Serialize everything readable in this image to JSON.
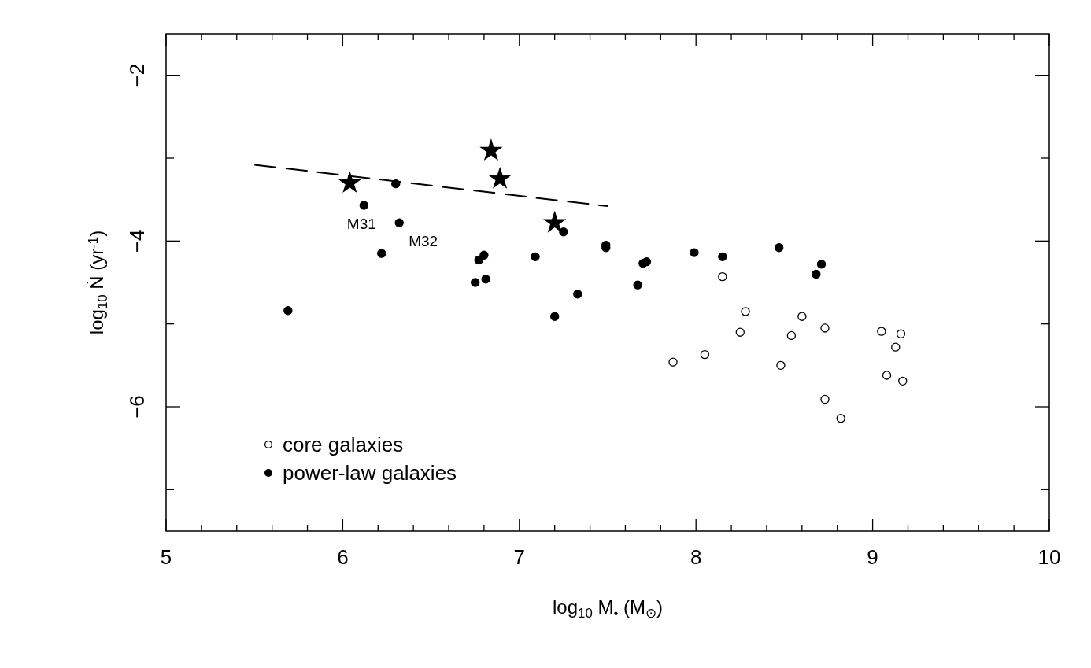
{
  "chart_data": {
    "type": "scatter",
    "xlabel": "log$_{10}$ M$_{•}$ (M$_{⊙}$)",
    "ylabel": "log$_{10}$ Ṅ (yr$^{-1}$)",
    "xlim": [
      5,
      10
    ],
    "ylim": [
      -7.5,
      -1.5
    ],
    "xticks": [
      5,
      {
        "value": 5.2,
        "label": null
      },
      {
        "value": 5.4,
        "label": null
      },
      {
        "value": 5.6,
        "label": null
      },
      {
        "value": 5.8,
        "label": null
      },
      6,
      {
        "value": 6.2,
        "label": null
      },
      {
        "value": 6.4,
        "label": null
      },
      {
        "value": 6.6,
        "label": null
      },
      {
        "value": 6.8,
        "label": null
      },
      7,
      {
        "value": 7.2,
        "label": null
      },
      {
        "value": 7.4,
        "label": null
      },
      {
        "value": 7.6,
        "label": null
      },
      {
        "value": 7.8,
        "label": null
      },
      8,
      {
        "value": 8.2,
        "label": null
      },
      {
        "value": 8.4,
        "label": null
      },
      {
        "value": 8.6,
        "label": null
      },
      {
        "value": 8.8,
        "label": null
      },
      9,
      {
        "value": 9.2,
        "label": null
      },
      {
        "value": 9.4,
        "label": null
      },
      {
        "value": 9.6,
        "label": null
      },
      {
        "value": 9.8,
        "label": null
      },
      10
    ],
    "yticks": [
      {
        "value": -7,
        "label": null
      },
      -6,
      {
        "value": -5,
        "label": null
      },
      -4,
      {
        "value": -3,
        "label": null
      },
      -2
    ],
    "grid": false,
    "legend": "bottom left",
    "series": [
      {
        "name": "core galaxies",
        "marker": "circle",
        "color": "#ffffff",
        "x": [
          7.87,
          8.05,
          8.15,
          8.25,
          8.28,
          8.48,
          8.54,
          8.6,
          8.73,
          8.73,
          8.82,
          9.05,
          9.16,
          9.13,
          9.08,
          9.17
        ],
        "values": [
          -5.46,
          -5.37,
          -4.43,
          -5.1,
          -4.85,
          -5.5,
          -5.14,
          -4.91,
          -5.05,
          -5.91,
          -6.14,
          -5.09,
          -5.12,
          -5.28,
          -5.62,
          -5.69
        ]
      },
      {
        "name": "power-law galaxies",
        "marker": "circle",
        "color": "#000000",
        "x": [
          5.69,
          6.12,
          6.3,
          6.32,
          6.22,
          6.75,
          6.77,
          6.8,
          6.81,
          7.09,
          7.2,
          7.25,
          7.33,
          7.49,
          7.49,
          7.67,
          7.7,
          7.72,
          7.99,
          8.15,
          8.47,
          8.68,
          8.71
        ],
        "values": [
          -4.84,
          -3.57,
          -3.31,
          -3.78,
          -4.15,
          -4.5,
          -4.23,
          -4.17,
          -4.46,
          -4.19,
          -4.91,
          -3.89,
          -4.64,
          -4.08,
          -4.05,
          -4.53,
          -4.27,
          -4.25,
          -4.14,
          -4.19,
          -4.08,
          -4.4,
          -4.28
        ]
      },
      {
        "marker": "star",
        "color": "#000000",
        "x": [
          6.04,
          6.84,
          6.89,
          7.2
        ],
        "values": [
          -3.3,
          -2.91,
          -3.25,
          -3.78
        ]
      },
      {
        "type": "line",
        "marker": "none",
        "line_style": "dashed",
        "color": "#000000",
        "x": [
          5.5,
          7.5
        ],
        "values": [
          -3.08,
          -3.58
        ]
      }
    ],
    "annotations": [
      {
        "text": "M31",
        "x": 6.12,
        "y": -3.57
      },
      {
        "text": "M32",
        "x": 6.32,
        "y": -3.78
      }
    ]
  }
}
